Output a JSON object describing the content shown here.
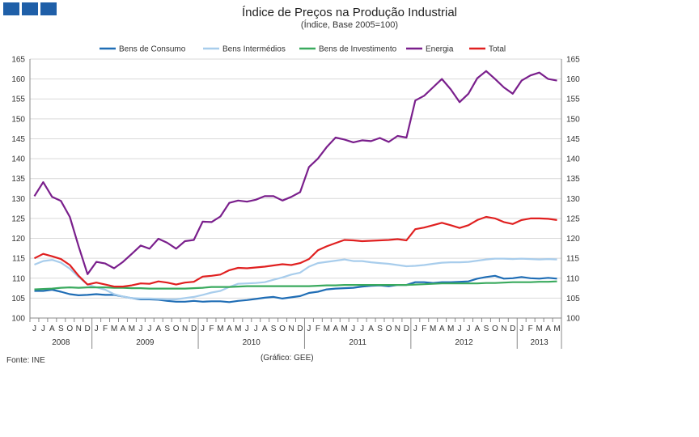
{
  "chart_data": {
    "type": "line",
    "title": "Índice de Preços na Produção Industrial",
    "subtitle": "(Índice, Base 2005=100)",
    "source": "Fonte: INE",
    "credit": "(Gráfico: GEE)",
    "ylim": [
      100,
      165
    ],
    "yticks": [
      100,
      105,
      110,
      115,
      120,
      125,
      130,
      135,
      140,
      145,
      150,
      155,
      160,
      165
    ],
    "grid": true,
    "legend_position": "top",
    "month_labels": [
      "J",
      "J",
      "A",
      "S",
      "O",
      "N",
      "D",
      "J",
      "F",
      "M",
      "A",
      "M",
      "J",
      "J",
      "A",
      "S",
      "O",
      "N",
      "D",
      "J",
      "F",
      "M",
      "A",
      "M",
      "J",
      "J",
      "A",
      "S",
      "O",
      "N",
      "D",
      "J",
      "F",
      "M",
      "A",
      "M",
      "J",
      "J",
      "A",
      "S",
      "O",
      "N",
      "D",
      "J",
      "F",
      "M",
      "A",
      "M",
      "J",
      "J",
      "A",
      "S",
      "O",
      "N",
      "D",
      "J",
      "F",
      "M",
      "A",
      "M"
    ],
    "years": [
      {
        "label": "2008",
        "start": 0,
        "end": 6
      },
      {
        "label": "2009",
        "start": 7,
        "end": 18
      },
      {
        "label": "2010",
        "start": 19,
        "end": 30
      },
      {
        "label": "2011",
        "start": 31,
        "end": 42
      },
      {
        "label": "2012",
        "start": 43,
        "end": 54
      },
      {
        "label": "2013",
        "start": 55,
        "end": 59
      }
    ],
    "series": [
      {
        "name": "Bens de Consumo",
        "color": "#1f6db5",
        "values": [
          106.8,
          106.8,
          107.1,
          106.6,
          106.0,
          105.7,
          105.8,
          106.0,
          105.8,
          105.8,
          105.4,
          105.0,
          104.7,
          104.7,
          104.6,
          104.3,
          104.1,
          104.1,
          104.3,
          104.1,
          104.2,
          104.2,
          104.0,
          104.3,
          104.5,
          104.8,
          105.1,
          105.3,
          104.9,
          105.2,
          105.5,
          106.3,
          106.6,
          107.2,
          107.4,
          107.5,
          107.6,
          107.9,
          108.1,
          108.2,
          108.0,
          108.3,
          108.3,
          109.0,
          109.0,
          108.8,
          109.0,
          109.0,
          109.1,
          109.2,
          109.9,
          110.3,
          110.6,
          109.9,
          110.0,
          110.3,
          110.0,
          109.9,
          110.1,
          109.9
        ]
      },
      {
        "name": "Bens Intermédios",
        "color": "#a8cdec",
        "values": [
          113.4,
          114.3,
          114.6,
          113.9,
          112.4,
          110.3,
          108.4,
          107.7,
          107.1,
          106.0,
          105.4,
          105.0,
          104.9,
          104.9,
          104.8,
          104.7,
          104.7,
          105.0,
          105.3,
          105.8,
          106.4,
          106.8,
          107.8,
          108.6,
          108.7,
          108.8,
          109.0,
          109.6,
          110.2,
          110.9,
          111.4,
          112.9,
          113.8,
          114.1,
          114.4,
          114.7,
          114.3,
          114.3,
          114.0,
          113.8,
          113.6,
          113.3,
          113.0,
          113.1,
          113.3,
          113.6,
          113.9,
          114.0,
          114.0,
          114.1,
          114.4,
          114.7,
          114.9,
          114.9,
          114.8,
          114.9,
          114.8,
          114.7,
          114.8,
          114.7
        ]
      },
      {
        "name": "Bens de Investimento",
        "color": "#3aaa5e",
        "values": [
          107.2,
          107.3,
          107.4,
          107.6,
          107.7,
          107.6,
          107.7,
          107.7,
          107.7,
          107.6,
          107.6,
          107.5,
          107.5,
          107.4,
          107.4,
          107.4,
          107.4,
          107.4,
          107.5,
          107.6,
          107.8,
          107.8,
          107.8,
          107.9,
          108.0,
          108.0,
          108.0,
          108.0,
          108.0,
          108.0,
          108.0,
          108.0,
          108.1,
          108.2,
          108.2,
          108.3,
          108.3,
          108.3,
          108.3,
          108.3,
          108.3,
          108.3,
          108.3,
          108.4,
          108.5,
          108.6,
          108.7,
          108.7,
          108.7,
          108.7,
          108.7,
          108.8,
          108.8,
          108.9,
          109.0,
          109.0,
          109.0,
          109.1,
          109.1,
          109.2
        ]
      },
      {
        "name": "Energia",
        "color": "#7a1f8c",
        "values": [
          130.6,
          134.1,
          130.4,
          129.4,
          125.4,
          118.0,
          111.0,
          114.1,
          113.7,
          112.5,
          114.1,
          116.1,
          118.2,
          117.4,
          119.9,
          118.9,
          117.4,
          119.3,
          119.6,
          124.2,
          124.1,
          125.5,
          128.9,
          129.5,
          129.2,
          129.7,
          130.6,
          130.6,
          129.5,
          130.4,
          131.6,
          137.9,
          140.0,
          142.9,
          145.3,
          144.8,
          144.1,
          144.6,
          144.4,
          145.2,
          144.2,
          145.7,
          145.3,
          154.6,
          155.8,
          157.9,
          160.0,
          157.4,
          154.2,
          156.3,
          160.2,
          162.0,
          160.0,
          157.9,
          156.3,
          159.6,
          160.9,
          161.6,
          160.0,
          159.6
        ]
      },
      {
        "name": "Total",
        "color": "#e02020",
        "values": [
          115.0,
          116.1,
          115.5,
          114.8,
          113.3,
          110.6,
          108.4,
          108.9,
          108.4,
          107.9,
          107.9,
          108.2,
          108.7,
          108.6,
          109.2,
          108.9,
          108.4,
          108.9,
          109.1,
          110.4,
          110.6,
          110.9,
          112.0,
          112.6,
          112.5,
          112.7,
          112.9,
          113.2,
          113.5,
          113.3,
          113.8,
          114.8,
          117.0,
          118.0,
          118.8,
          119.6,
          119.5,
          119.3,
          119.4,
          119.5,
          119.6,
          119.8,
          119.5,
          122.3,
          122.7,
          123.3,
          123.9,
          123.3,
          122.6,
          123.3,
          124.6,
          125.4,
          125.0,
          124.1,
          123.6,
          124.6,
          125.0,
          125.0,
          124.9,
          124.6
        ]
      }
    ]
  }
}
